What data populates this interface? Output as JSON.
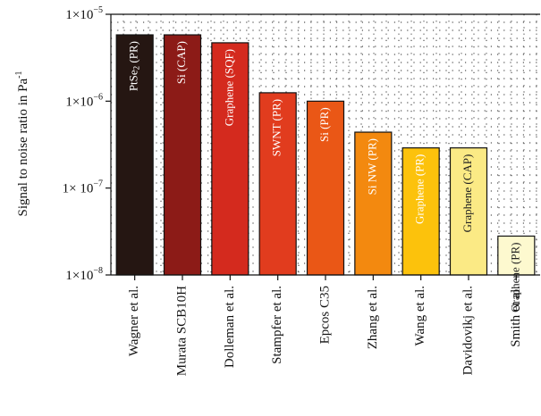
{
  "chart_data": {
    "type": "bar",
    "ylabel": "Signal to noise ratio in Pa",
    "ylabel_sup": "-1",
    "yscale": "log",
    "ylim": [
      1e-08,
      1e-05
    ],
    "grid": true,
    "yticks": [
      {
        "value": 1e-05,
        "base": "1×10",
        "exp": "−5"
      },
      {
        "value": 1e-06,
        "base": "1×10",
        "exp": "−6"
      },
      {
        "value": 1e-07,
        "base": "1× 10",
        "exp": "−7"
      },
      {
        "value": 1e-08,
        "base": "1×10",
        "exp": "−8"
      }
    ],
    "categories": [
      "Wagner et al.",
      "Murata SCB10H",
      "Dolleman et al.",
      "Stampfer et al.",
      "Epcos C35",
      "Zhang et al.",
      "Wang et al.",
      "Davidovikj et al.",
      "Smith et al."
    ],
    "values": [
      5.8e-06,
      5.8e-06,
      4.7e-06,
      1.25e-06,
      1e-06,
      4.4e-07,
      2.9e-07,
      2.9e-07,
      2.8e-08
    ],
    "bar_labels": [
      {
        "main": "PtSe",
        "sub": "2",
        "rest": " (PR)"
      },
      {
        "main": "Si (CAP)"
      },
      {
        "main": "Graphene (SQF)"
      },
      {
        "main": "SWNT (PR)"
      },
      {
        "main": "Si (PR)"
      },
      {
        "main": "Si NW (PR)"
      },
      {
        "main": "Graphene (PR)"
      },
      {
        "main": "Graphene (CAP)"
      },
      {
        "main": "Graphene (PR)"
      }
    ],
    "colors": [
      "#251612",
      "#8c1b17",
      "#d42a1e",
      "#e13c1e",
      "#ea5716",
      "#f3890f",
      "#fcc20c",
      "#fbea85",
      "#fdf9cf"
    ],
    "label_colors": [
      "#ffffff",
      "#ffffff",
      "#ffffff",
      "#ffffff",
      "#ffffff",
      "#ffffff",
      "#ffffff",
      "#222222",
      "#222222"
    ]
  }
}
